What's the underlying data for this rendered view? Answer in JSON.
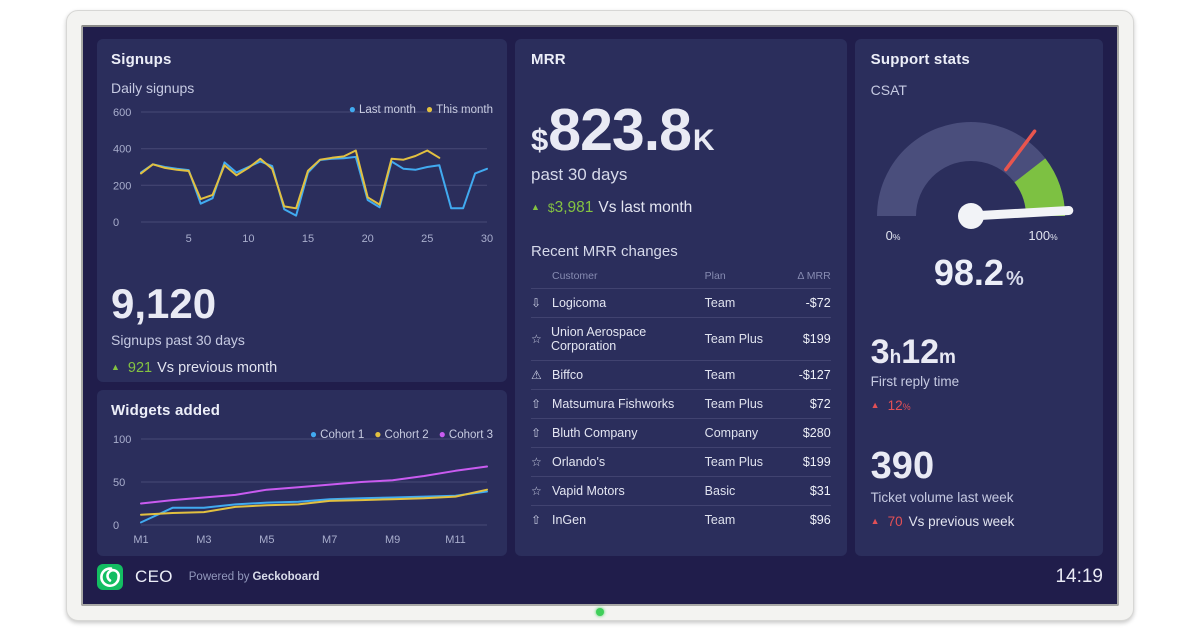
{
  "meta": {
    "dashboard_name": "CEO",
    "powered_by_prefix": "Powered by",
    "powered_by_brand": "Geckoboard",
    "clock": "14:19"
  },
  "colors": {
    "screen_bg": "#201d4b",
    "panel_bg": "#2b2e5c",
    "accent_green": "#84c341",
    "accent_red": "#e25056",
    "line_blue": "#41aaf0",
    "line_yellow": "#e2c040",
    "line_magenta": "#c95bf0",
    "gauge_track": "#4a4e7c",
    "gauge_green": "#7dc142",
    "logo_green": "#13bd62"
  },
  "signups": {
    "title": "Signups",
    "chart_title": "Daily signups",
    "total": "9,120",
    "total_label": "Signups past 30 days",
    "delta_value": "921",
    "delta_label": "Vs previous month"
  },
  "widgets": {
    "title": "Widgets added"
  },
  "mrr": {
    "title": "MRR",
    "currency": "$",
    "value": "823.8",
    "suffix": "K",
    "period": "past 30 days",
    "delta_currency": "$",
    "delta_value": "3,981",
    "delta_label": "Vs last month",
    "table": {
      "title": "Recent MRR changes",
      "columns": [
        "Customer",
        "Plan",
        "Δ MRR"
      ],
      "rows": [
        {
          "icon": "arrow-down",
          "customer": "Logicoma",
          "plan": "Team",
          "delta": "-$72"
        },
        {
          "icon": "star",
          "customer": "Union Aerospace Corporation",
          "plan": "Team Plus",
          "delta": "$199"
        },
        {
          "icon": "warning",
          "customer": "Biffco",
          "plan": "Team",
          "delta": "-$127"
        },
        {
          "icon": "arrow-up",
          "customer": "Matsumura Fishworks",
          "plan": "Team Plus",
          "delta": "$72"
        },
        {
          "icon": "arrow-up",
          "customer": "Bluth Company",
          "plan": "Company",
          "delta": "$280"
        },
        {
          "icon": "star",
          "customer": "Orlando's",
          "plan": "Team Plus",
          "delta": "$199"
        },
        {
          "icon": "star",
          "customer": "Vapid Motors",
          "plan": "Basic",
          "delta": "$31"
        },
        {
          "icon": "arrow-up",
          "customer": "InGen",
          "plan": "Team",
          "delta": "$96"
        }
      ]
    }
  },
  "support": {
    "title": "Support stats",
    "gauge_label": "CSAT",
    "gauge_min_label": "0",
    "gauge_max_label": "100",
    "gauge_value": "98.2",
    "percent_sign": "%",
    "first_reply": {
      "hours": "3",
      "hours_unit": "h",
      "minutes": "12",
      "minutes_unit": "m",
      "label": "First reply time",
      "delta": "12",
      "delta_suffix": "%"
    },
    "tickets": {
      "value": "390",
      "label": "Ticket volume last week",
      "delta": "70",
      "delta_label": "Vs previous week"
    }
  },
  "chart_data": [
    {
      "id": "daily-signups",
      "type": "line",
      "title": "Daily signups",
      "xlim": [
        1,
        30
      ],
      "ylim": [
        0,
        600
      ],
      "y_ticks": [
        0,
        200,
        400,
        600
      ],
      "x_ticks": [
        {
          "v": 5,
          "label": "5"
        },
        {
          "v": 10,
          "label": "10"
        },
        {
          "v": 15,
          "label": "15"
        },
        {
          "v": 20,
          "label": "20"
        },
        {
          "v": 25,
          "label": "25"
        },
        {
          "v": 30,
          "label": "30"
        }
      ],
      "legend_position": "top-right",
      "grid": true,
      "series": [
        {
          "name": "Last month",
          "color": "#41aaf0",
          "values": [
            270,
            315,
            300,
            290,
            283,
            100,
            130,
            325,
            270,
            300,
            330,
            305,
            70,
            35,
            270,
            338,
            345,
            348,
            355,
            120,
            80,
            330,
            290,
            285,
            300,
            310,
            75,
            75,
            265,
            290
          ]
        },
        {
          "name": "This month",
          "color": "#e2c040",
          "values": [
            265,
            315,
            295,
            285,
            278,
            125,
            148,
            310,
            255,
            295,
            345,
            290,
            85,
            75,
            280,
            340,
            350,
            358,
            390,
            135,
            95,
            345,
            340,
            360,
            390,
            350
          ]
        }
      ]
    },
    {
      "id": "widgets-added",
      "type": "line",
      "title": "Widgets added",
      "xlim": [
        1,
        12
      ],
      "ylim": [
        0,
        100
      ],
      "y_ticks": [
        0,
        50,
        100
      ],
      "x_ticks": [
        {
          "v": 1,
          "label": "M1"
        },
        {
          "v": 3,
          "label": "M3"
        },
        {
          "v": 5,
          "label": "M5"
        },
        {
          "v": 7,
          "label": "M7"
        },
        {
          "v": 9,
          "label": "M9"
        },
        {
          "v": 11,
          "label": "M11"
        }
      ],
      "legend_position": "top-right",
      "grid": true,
      "series": [
        {
          "name": "Cohort 1",
          "color": "#41aaf0",
          "values": [
            3,
            20,
            20,
            24,
            26,
            27,
            30,
            31,
            32,
            33,
            34,
            39
          ]
        },
        {
          "name": "Cohort 2",
          "color": "#e2c040",
          "values": [
            12,
            14,
            15,
            21,
            23,
            24,
            28,
            29,
            30,
            31,
            33,
            41
          ]
        },
        {
          "name": "Cohort 3",
          "color": "#c95bf0",
          "values": [
            25,
            29,
            32,
            35,
            41,
            44,
            47,
            50,
            52,
            57,
            63,
            68
          ]
        }
      ]
    },
    {
      "id": "csat-gauge",
      "type": "gauge",
      "title": "CSAT",
      "min": 0,
      "max": 100,
      "value": 98.2,
      "unit": "%",
      "green_zone": [
        79,
        100
      ],
      "threshold": 70.5,
      "track_color": "#4a4e7c",
      "green_color": "#7dc142",
      "threshold_color": "#e8554e",
      "needle_color": "#f2f3f7"
    }
  ]
}
